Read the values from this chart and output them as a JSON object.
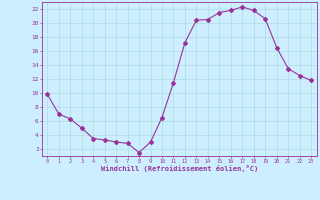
{
  "x": [
    0,
    1,
    2,
    3,
    4,
    5,
    6,
    7,
    8,
    9,
    10,
    11,
    12,
    13,
    14,
    15,
    16,
    17,
    18,
    19,
    20,
    21,
    22,
    23
  ],
  "y": [
    9.8,
    7.0,
    6.3,
    5.0,
    3.5,
    3.3,
    3.0,
    2.8,
    1.5,
    3.0,
    6.5,
    11.5,
    17.2,
    20.4,
    20.5,
    21.5,
    21.8,
    22.3,
    21.8,
    20.6,
    16.5,
    13.5,
    12.5,
    11.8
  ],
  "line_color": "#993399",
  "marker": "D",
  "marker_size": 2,
  "bg_color": "#cceeff",
  "grid_color": "#aadddd",
  "xlabel": "Windchill (Refroidissement éolien,°C)",
  "xlim": [
    -0.5,
    23.5
  ],
  "ylim": [
    1,
    23
  ],
  "yticks": [
    2,
    4,
    6,
    8,
    10,
    12,
    14,
    16,
    18,
    20,
    22
  ],
  "xticks": [
    0,
    1,
    2,
    3,
    4,
    5,
    6,
    7,
    8,
    9,
    10,
    11,
    12,
    13,
    14,
    15,
    16,
    17,
    18,
    19,
    20,
    21,
    22,
    23
  ],
  "xlabel_color": "#993399",
  "tick_color": "#993399",
  "spine_color": "#993399"
}
